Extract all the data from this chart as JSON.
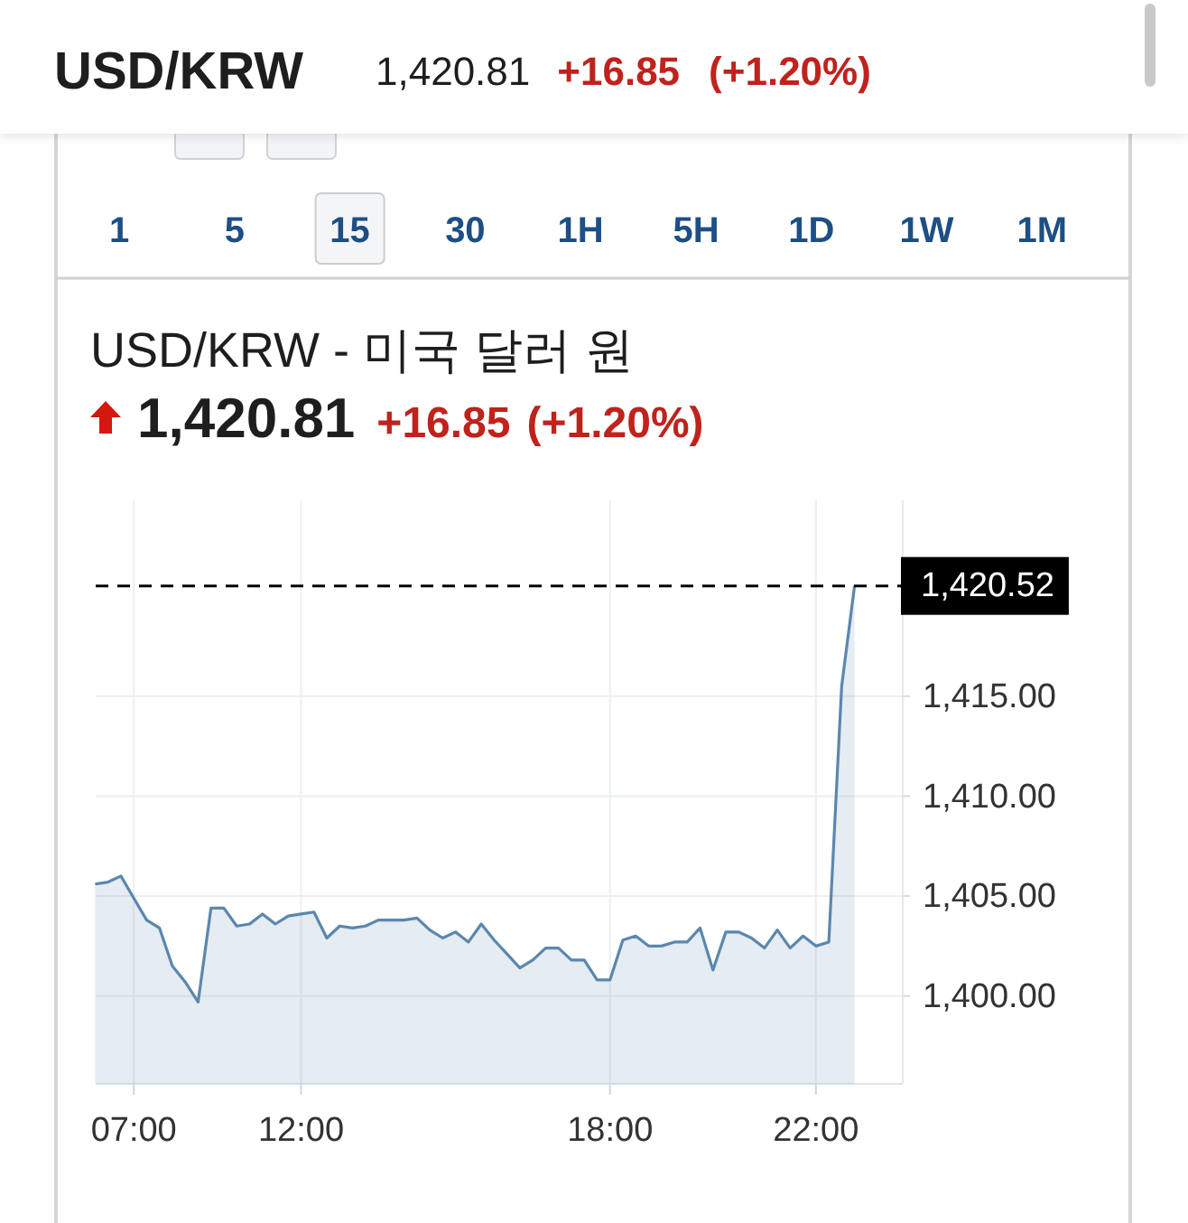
{
  "chart_data": {
    "type": "area",
    "title": "USD/KRW",
    "subtitle": "USD/KRW - 미국 달러 원",
    "annotations": [
      "1,420.81",
      "+16.85",
      "(+1.20%)",
      "1",
      "5",
      "15",
      "30",
      "1H",
      "5H",
      "1D",
      "1W",
      "1M",
      "1,420.81",
      "+16.85",
      "(+1.20%)"
    ],
    "categories": [
      null,
      null,
      null,
      "07:00",
      null,
      null,
      null,
      null,
      null,
      null,
      null,
      null,
      null,
      null,
      null,
      null,
      "12:00",
      null,
      null,
      null,
      null,
      null,
      null,
      null,
      null,
      null,
      null,
      null,
      null,
      null,
      null,
      null,
      null,
      null,
      null,
      null,
      null,
      null,
      null,
      null,
      "18:00",
      null,
      null,
      null,
      null,
      null,
      null,
      null,
      null,
      null,
      null,
      null,
      null,
      null,
      null,
      null,
      "22:00",
      null,
      null,
      null
    ],
    "series": [
      {
        "color": "#5b87ad",
        "values": [
          1405.6,
          1405.7,
          1406.0,
          1404.9,
          1403.8,
          1403.4,
          1401.5,
          1400.7,
          1399.7,
          1404.4,
          1404.4,
          1403.5,
          1403.6,
          1404.1,
          1403.6,
          1404.0,
          1404.1,
          1404.2,
          1402.9,
          1403.5,
          1403.4,
          1403.5,
          1403.8,
          1403.8,
          1403.8,
          1403.9,
          1403.3,
          1402.9,
          1403.2,
          1402.7,
          1403.6,
          1402.8,
          1402.1,
          1401.4,
          1401.8,
          1402.4,
          1402.4,
          1401.8,
          1401.8,
          1400.8,
          1400.8,
          1402.8,
          1403.0,
          1402.5,
          1402.5,
          1402.7,
          1402.7,
          1403.4,
          1401.3,
          1403.2,
          1403.2,
          1402.9,
          1402.4,
          1403.3,
          1402.4,
          1403.0,
          1402.5,
          1402.7,
          1415.5,
          1420.52
        ]
      }
    ],
    "ylim": [
      1395.6,
      1424.8
    ],
    "yticks": [
      {
        "value": 1400,
        "label": "1,400.00"
      },
      {
        "value": 1405,
        "label": "1,405.00"
      },
      {
        "value": 1410,
        "label": "1,410.00"
      },
      {
        "value": 1415,
        "label": "1,415.00"
      }
    ],
    "grid": true,
    "ref_lines": [
      {
        "axis": "y",
        "value": 1420.52,
        "label": "1,420.52",
        "color": "#000000",
        "line_style": "dashed"
      }
    ]
  }
}
